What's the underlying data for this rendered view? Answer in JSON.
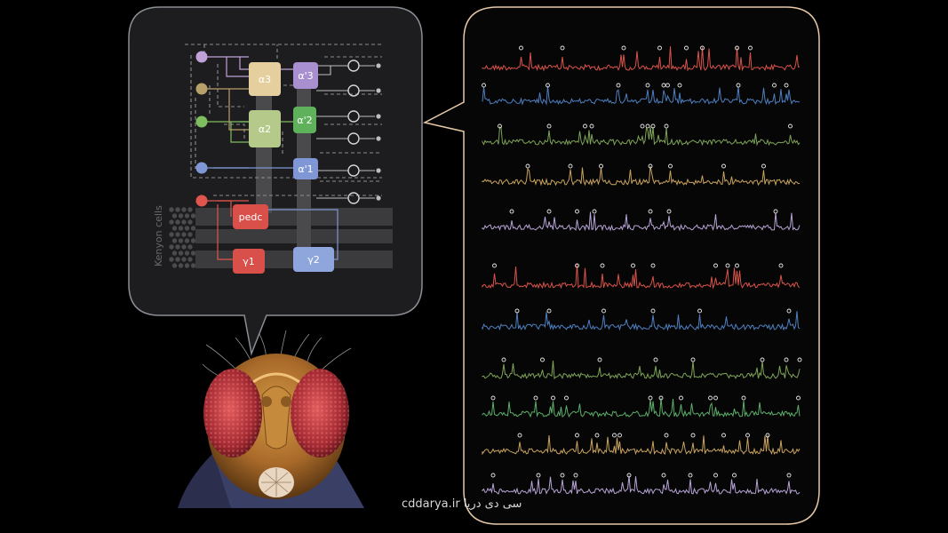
{
  "diagram": {
    "compartments": [
      {
        "id": "a3",
        "label": "α3",
        "color": "#e6cf9e"
      },
      {
        "id": "ap3",
        "label": "α'3",
        "color": "#a78fd0"
      },
      {
        "id": "a2",
        "label": "α2",
        "color": "#b5c98a"
      },
      {
        "id": "ap2",
        "label": "α'2",
        "color": "#5fb15b"
      },
      {
        "id": "ap1",
        "label": "α'1",
        "color": "#7f97d4"
      },
      {
        "id": "pedc",
        "label": "pedc",
        "color": "#d9504a"
      },
      {
        "id": "g1",
        "label": "γ1",
        "color": "#d9504a"
      },
      {
        "id": "g2",
        "label": "γ2",
        "color": "#8fa6dd"
      }
    ],
    "kenyon_label": "Kenyon cells"
  },
  "traces": {
    "colors": [
      "#d9534a",
      "#4e7fc0",
      "#7ea356",
      "#c9a35e",
      "#b7a3d6",
      "#d9534a",
      "#4e7fc0",
      "#7ea356",
      "#5cae6a",
      "#c9a35e",
      "#b7a3d6"
    ]
  },
  "watermark": "cddarya.ir  سی دی دریا"
}
